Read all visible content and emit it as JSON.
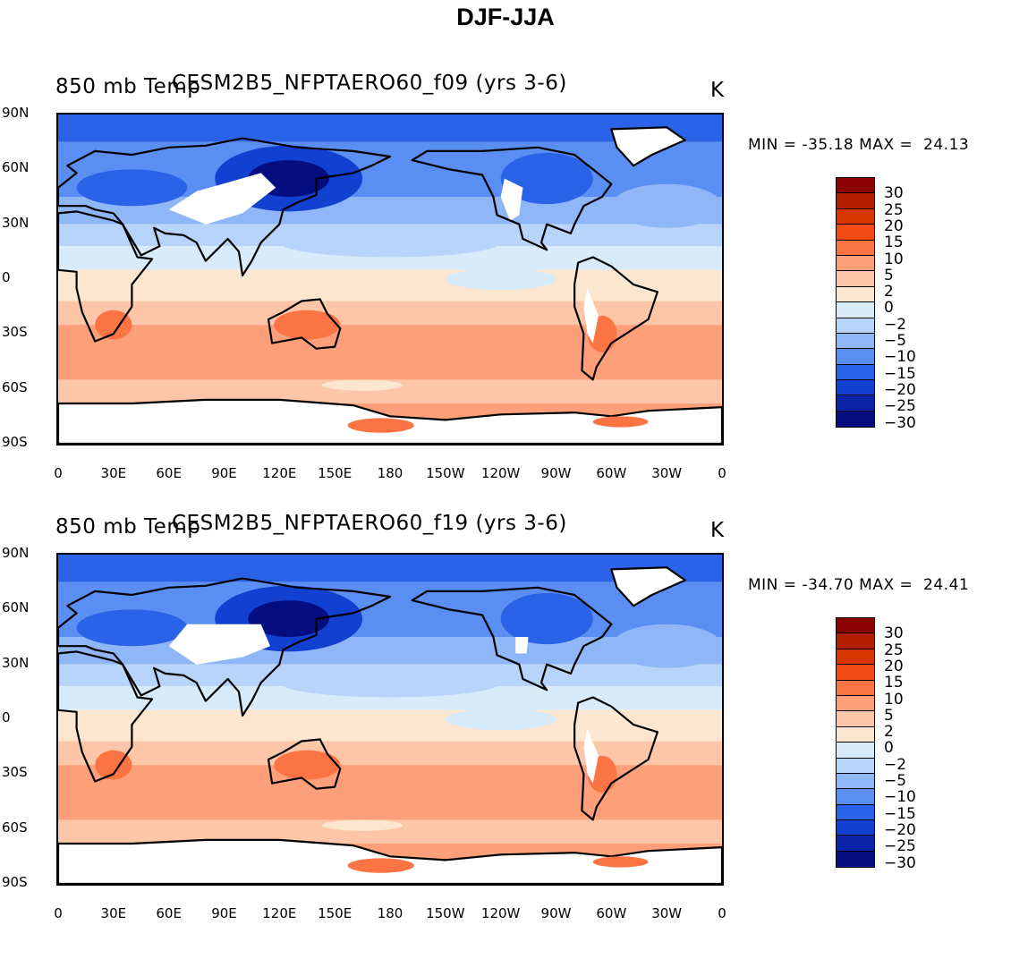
{
  "main_title": "DJF-JJA",
  "colorbar": {
    "labels": [
      "30",
      "25",
      "20",
      "15",
      "10",
      "5",
      "2",
      "0",
      "-2",
      "-5",
      "-10",
      "-15",
      "-20",
      "-25",
      "-30"
    ],
    "colors": [
      "#8b0000",
      "#b22000",
      "#d93500",
      "#f44b12",
      "#fd7444",
      "#fd9f78",
      "#fdc6a8",
      "#fde6d0",
      "#d8ebfb",
      "#b9d4fa",
      "#8fb6f6",
      "#5a8ef2",
      "#2a62e8",
      "#1240d0",
      "#0a23a8",
      "#050e80"
    ]
  },
  "axes": {
    "lat_labels": [
      "90N",
      "60N",
      "30N",
      "0",
      "30S",
      "60S",
      "90S"
    ],
    "lon_labels": [
      "0",
      "30E",
      "60E",
      "90E",
      "120E",
      "150E",
      "180",
      "150W",
      "120W",
      "90W",
      "60W",
      "30W",
      "0"
    ]
  },
  "panels": [
    {
      "left_string": "850 mb Temp",
      "center_string": "CESM2B5_NFPTAERO60_f09 (yrs 3-6)",
      "right_string": "K",
      "min_value": "-35.18",
      "max_value": "24.13",
      "minmax_text": "MIN = -35.18 MAX =  24.13"
    },
    {
      "left_string": "850 mb Temp",
      "center_string": "CESM2B5_NFPTAERO60_f19 (yrs 3-6)",
      "right_string": "K",
      "min_value": "-34.70",
      "max_value": "24.41",
      "minmax_text": "MIN = -34.70 MAX =  24.41"
    }
  ]
}
